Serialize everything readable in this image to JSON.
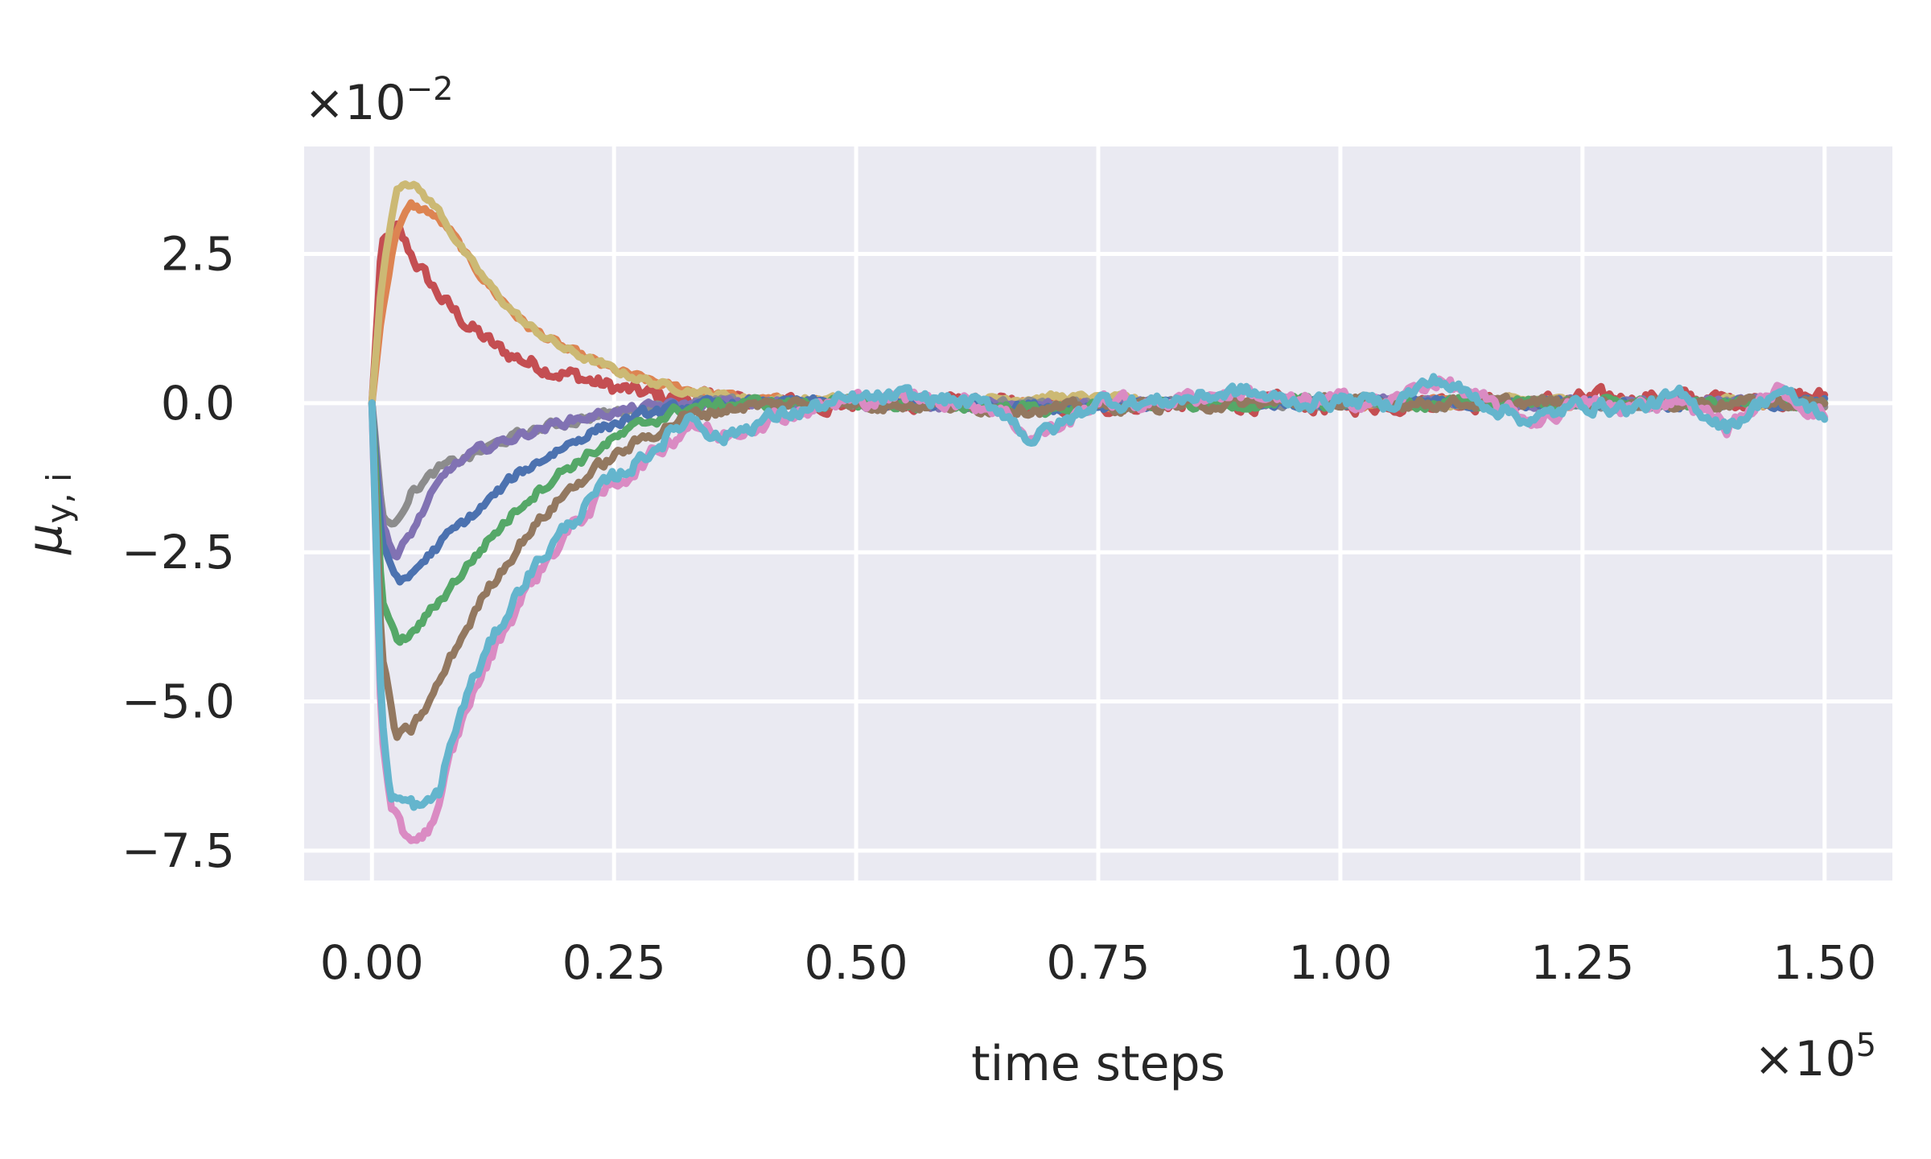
{
  "chart_data": {
    "type": "line",
    "xlabel": "time steps",
    "ylabel": "μy,i",
    "ylabel_main": "μ",
    "ylabel_sub": "y, i",
    "x_offset_text": "×10",
    "x_offset_exp": "5",
    "y_offset_text": "×10",
    "y_offset_exp": "−2",
    "x_scale": "×10^5",
    "y_scale": "×10^-2",
    "xlim": [
      -0.07,
      1.57
    ],
    "ylim": [
      -8.0,
      4.3
    ],
    "x_ticks": [
      0.0,
      0.25,
      0.5,
      0.75,
      1.0,
      1.25,
      1.5
    ],
    "x_tick_labels": [
      "0.00",
      "0.25",
      "0.50",
      "0.75",
      "1.00",
      "1.25",
      "1.50"
    ],
    "y_ticks": [
      2.5,
      0.0,
      -2.5,
      -5.0,
      -7.5
    ],
    "y_tick_labels": [
      "2.5",
      "0.0",
      "−2.5",
      "−5.0",
      "−7.5"
    ],
    "grid": true,
    "background": "#eaeaf2",
    "series": [
      {
        "color": "#c44e52",
        "points": [
          [
            0,
            0
          ],
          [
            0.01,
            2.6
          ],
          [
            0.025,
            2.9
          ],
          [
            0.04,
            2.5
          ],
          [
            0.06,
            2.0
          ],
          [
            0.08,
            1.6
          ],
          [
            0.1,
            1.3
          ],
          [
            0.13,
            0.9
          ],
          [
            0.16,
            0.7
          ],
          [
            0.2,
            0.5
          ],
          [
            0.25,
            0.25
          ],
          [
            0.3,
            0.1
          ],
          [
            0.35,
            0.05
          ],
          [
            0.4,
            0.0
          ],
          [
            0.5,
            0.0
          ],
          [
            0.6,
            0.0
          ],
          [
            0.7,
            -0.1
          ],
          [
            0.8,
            0.0
          ],
          [
            0.9,
            0.0
          ],
          [
            1.0,
            -0.05
          ],
          [
            1.1,
            0.05
          ],
          [
            1.2,
            0.0
          ],
          [
            1.3,
            0.1
          ],
          [
            1.4,
            0.05
          ],
          [
            1.5,
            0.1
          ]
        ],
        "noise": 0.22
      },
      {
        "color": "#dd8452",
        "points": [
          [
            0,
            0
          ],
          [
            0.01,
            1.5
          ],
          [
            0.025,
            2.9
          ],
          [
            0.04,
            3.3
          ],
          [
            0.06,
            3.2
          ],
          [
            0.08,
            2.9
          ],
          [
            0.1,
            2.4
          ],
          [
            0.13,
            1.8
          ],
          [
            0.16,
            1.3
          ],
          [
            0.2,
            0.9
          ],
          [
            0.25,
            0.55
          ],
          [
            0.3,
            0.3
          ],
          [
            0.35,
            0.15
          ],
          [
            0.4,
            0.05
          ],
          [
            0.5,
            0.0
          ],
          [
            0.6,
            0.0
          ],
          [
            0.7,
            0.0
          ],
          [
            0.8,
            0.0
          ],
          [
            0.9,
            0.0
          ],
          [
            1.0,
            0.0
          ],
          [
            1.1,
            0.0
          ],
          [
            1.2,
            0.0
          ],
          [
            1.3,
            0.0
          ],
          [
            1.4,
            0.0
          ],
          [
            1.5,
            0.0
          ]
        ],
        "noise": 0.1
      },
      {
        "color": "#ccb974",
        "points": [
          [
            0,
            0
          ],
          [
            0.01,
            2.0
          ],
          [
            0.025,
            3.6
          ],
          [
            0.035,
            3.75
          ],
          [
            0.05,
            3.55
          ],
          [
            0.07,
            3.2
          ],
          [
            0.1,
            2.4
          ],
          [
            0.13,
            1.8
          ],
          [
            0.16,
            1.3
          ],
          [
            0.2,
            0.9
          ],
          [
            0.25,
            0.55
          ],
          [
            0.3,
            0.3
          ],
          [
            0.35,
            0.15
          ],
          [
            0.4,
            0.05
          ],
          [
            0.5,
            0.05
          ],
          [
            0.6,
            0.05
          ],
          [
            0.7,
            0.1
          ],
          [
            0.8,
            0.05
          ],
          [
            0.9,
            0.0
          ],
          [
            1.0,
            0.05
          ],
          [
            1.1,
            0.0
          ],
          [
            1.2,
            0.05
          ],
          [
            1.3,
            0.0
          ],
          [
            1.4,
            0.05
          ],
          [
            1.5,
            0.0
          ]
        ],
        "noise": 0.1
      },
      {
        "color": "#8c8c8c",
        "points": [
          [
            0,
            0
          ],
          [
            0.01,
            -1.8
          ],
          [
            0.02,
            -2.1
          ],
          [
            0.04,
            -1.5
          ],
          [
            0.07,
            -1.1
          ],
          [
            0.1,
            -0.9
          ],
          [
            0.14,
            -0.6
          ],
          [
            0.18,
            -0.4
          ],
          [
            0.22,
            -0.25
          ],
          [
            0.27,
            -0.1
          ],
          [
            0.32,
            0.0
          ],
          [
            0.4,
            0.0
          ],
          [
            0.5,
            0.0
          ],
          [
            0.6,
            0.0
          ],
          [
            0.7,
            -0.05
          ],
          [
            0.8,
            0.0
          ],
          [
            0.9,
            0.0
          ],
          [
            1.0,
            0.0
          ],
          [
            1.1,
            0.0
          ],
          [
            1.2,
            0.0
          ],
          [
            1.3,
            0.0
          ],
          [
            1.4,
            0.0
          ],
          [
            1.5,
            0.0
          ]
        ],
        "noise": 0.12
      },
      {
        "color": "#8172b3",
        "points": [
          [
            0,
            0
          ],
          [
            0.01,
            -2.0
          ],
          [
            0.025,
            -2.6
          ],
          [
            0.04,
            -2.2
          ],
          [
            0.06,
            -1.6
          ],
          [
            0.08,
            -1.1
          ],
          [
            0.11,
            -0.8
          ],
          [
            0.15,
            -0.55
          ],
          [
            0.2,
            -0.3
          ],
          [
            0.25,
            -0.15
          ],
          [
            0.3,
            -0.05
          ],
          [
            0.35,
            0.0
          ],
          [
            0.5,
            0.0
          ],
          [
            0.7,
            -0.05
          ],
          [
            0.9,
            0.0
          ],
          [
            1.1,
            0.0
          ],
          [
            1.3,
            0.0
          ],
          [
            1.5,
            0.0
          ]
        ],
        "noise": 0.12
      },
      {
        "color": "#4c72b0",
        "points": [
          [
            0,
            0
          ],
          [
            0.01,
            -2.4
          ],
          [
            0.025,
            -2.9
          ],
          [
            0.035,
            -3.0
          ],
          [
            0.05,
            -2.7
          ],
          [
            0.08,
            -2.2
          ],
          [
            0.11,
            -1.8
          ],
          [
            0.15,
            -1.2
          ],
          [
            0.19,
            -0.8
          ],
          [
            0.23,
            -0.45
          ],
          [
            0.28,
            -0.2
          ],
          [
            0.33,
            -0.05
          ],
          [
            0.4,
            0.0
          ],
          [
            0.5,
            0.0
          ],
          [
            0.7,
            -0.05
          ],
          [
            0.9,
            0.0
          ],
          [
            1.1,
            0.0
          ],
          [
            1.3,
            0.0
          ],
          [
            1.5,
            0.0
          ]
        ],
        "noise": 0.13
      },
      {
        "color": "#55a868",
        "points": [
          [
            0,
            0
          ],
          [
            0.01,
            -3.2
          ],
          [
            0.025,
            -4.0
          ],
          [
            0.04,
            -3.9
          ],
          [
            0.06,
            -3.5
          ],
          [
            0.09,
            -2.9
          ],
          [
            0.12,
            -2.3
          ],
          [
            0.16,
            -1.6
          ],
          [
            0.2,
            -1.1
          ],
          [
            0.24,
            -0.7
          ],
          [
            0.28,
            -0.35
          ],
          [
            0.32,
            -0.1
          ],
          [
            0.38,
            0.0
          ],
          [
            0.5,
            0.0
          ],
          [
            0.7,
            -0.1
          ],
          [
            0.9,
            0.0
          ],
          [
            1.1,
            0.0
          ],
          [
            1.3,
            0.0
          ],
          [
            1.5,
            0.0
          ]
        ],
        "noise": 0.14
      },
      {
        "color": "#937860",
        "points": [
          [
            0,
            0
          ],
          [
            0.01,
            -4.2
          ],
          [
            0.025,
            -5.6
          ],
          [
            0.04,
            -5.5
          ],
          [
            0.06,
            -5.0
          ],
          [
            0.09,
            -4.0
          ],
          [
            0.12,
            -3.1
          ],
          [
            0.16,
            -2.2
          ],
          [
            0.2,
            -1.5
          ],
          [
            0.24,
            -1.0
          ],
          [
            0.28,
            -0.6
          ],
          [
            0.32,
            -0.25
          ],
          [
            0.38,
            -0.05
          ],
          [
            0.45,
            0.0
          ],
          [
            0.5,
            0.0
          ],
          [
            0.7,
            -0.1
          ],
          [
            0.9,
            0.0
          ],
          [
            1.1,
            0.0
          ],
          [
            1.3,
            0.0
          ],
          [
            1.5,
            0.0
          ]
        ],
        "noise": 0.15
      },
      {
        "color": "#da8bc3",
        "points": [
          [
            0,
            0
          ],
          [
            0.01,
            -5.5
          ],
          [
            0.02,
            -6.9
          ],
          [
            0.035,
            -7.3
          ],
          [
            0.055,
            -7.2
          ],
          [
            0.07,
            -6.8
          ],
          [
            0.08,
            -6.0
          ],
          [
            0.1,
            -5.0
          ],
          [
            0.13,
            -4.0
          ],
          [
            0.16,
            -3.1
          ],
          [
            0.2,
            -2.2
          ],
          [
            0.24,
            -1.5
          ],
          [
            0.28,
            -1.0
          ],
          [
            0.31,
            -0.6
          ],
          [
            0.33,
            -0.3
          ],
          [
            0.36,
            -0.6
          ],
          [
            0.4,
            -0.3
          ],
          [
            0.45,
            -0.1
          ],
          [
            0.5,
            0.05
          ],
          [
            0.55,
            0.1
          ],
          [
            0.6,
            0.05
          ],
          [
            0.65,
            -0.1
          ],
          [
            0.68,
            -0.6
          ],
          [
            0.72,
            -0.3
          ],
          [
            0.75,
            0.05
          ],
          [
            0.8,
            0.0
          ],
          [
            0.9,
            0.2
          ],
          [
            0.95,
            0.0
          ],
          [
            1.0,
            0.05
          ],
          [
            1.05,
            0.0
          ],
          [
            1.1,
            0.4
          ],
          [
            1.15,
            0.0
          ],
          [
            1.2,
            -0.3
          ],
          [
            1.25,
            0.0
          ],
          [
            1.3,
            -0.1
          ],
          [
            1.35,
            0.1
          ],
          [
            1.4,
            -0.4
          ],
          [
            1.45,
            0.2
          ],
          [
            1.5,
            -0.2
          ]
        ],
        "noise": 0.2
      },
      {
        "color": "#64b5cd",
        "points": [
          [
            0,
            0
          ],
          [
            0.01,
            -5.3
          ],
          [
            0.02,
            -6.6
          ],
          [
            0.035,
            -6.7
          ],
          [
            0.055,
            -6.8
          ],
          [
            0.07,
            -6.5
          ],
          [
            0.08,
            -5.8
          ],
          [
            0.1,
            -4.8
          ],
          [
            0.13,
            -3.8
          ],
          [
            0.16,
            -2.9
          ],
          [
            0.2,
            -2.1
          ],
          [
            0.24,
            -1.4
          ],
          [
            0.28,
            -0.9
          ],
          [
            0.31,
            -0.5
          ],
          [
            0.33,
            -0.2
          ],
          [
            0.36,
            -0.6
          ],
          [
            0.4,
            -0.3
          ],
          [
            0.45,
            -0.1
          ],
          [
            0.5,
            0.05
          ],
          [
            0.55,
            0.1
          ],
          [
            0.6,
            0.05
          ],
          [
            0.65,
            -0.1
          ],
          [
            0.68,
            -0.6
          ],
          [
            0.72,
            -0.3
          ],
          [
            0.75,
            0.05
          ],
          [
            0.8,
            0.0
          ],
          [
            0.9,
            0.2
          ],
          [
            0.95,
            0.0
          ],
          [
            1.0,
            0.05
          ],
          [
            1.05,
            0.0
          ],
          [
            1.1,
            0.4
          ],
          [
            1.15,
            0.0
          ],
          [
            1.2,
            -0.3
          ],
          [
            1.25,
            0.0
          ],
          [
            1.3,
            -0.1
          ],
          [
            1.35,
            0.1
          ],
          [
            1.4,
            -0.4
          ],
          [
            1.45,
            0.2
          ],
          [
            1.5,
            -0.2
          ]
        ],
        "noise": 0.2
      }
    ]
  }
}
